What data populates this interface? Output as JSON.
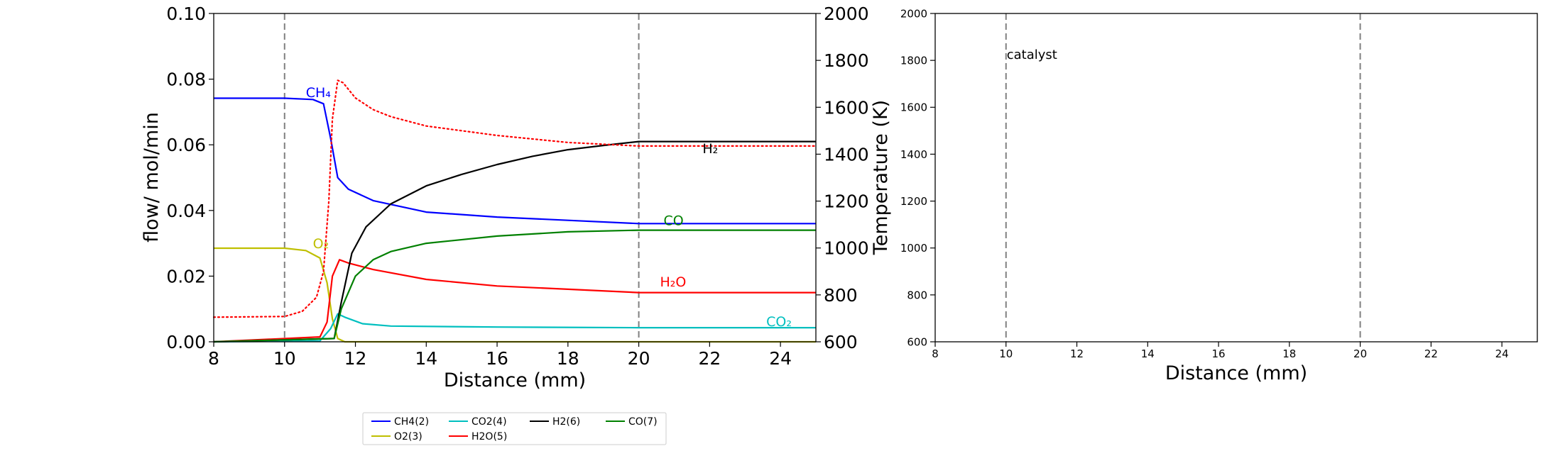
{
  "chart_data": [
    {
      "type": "line",
      "xlabel": "Distance (mm)",
      "ylabel": "flow/ mol/min",
      "ylabel_right": "Temperature (K)",
      "xlim": [
        8,
        25
      ],
      "ylim": [
        0,
        0.1
      ],
      "ylim_right": [
        600,
        2000
      ],
      "xticks": [
        "8",
        "10",
        "12",
        "14",
        "16",
        "18",
        "20",
        "22",
        "24"
      ],
      "yticks": [
        "0.00",
        "0.02",
        "0.04",
        "0.06",
        "0.08",
        "0.10"
      ],
      "yticks_right": [
        "600",
        "800",
        "1000",
        "1200",
        "1400",
        "1600",
        "1800",
        "2000"
      ],
      "vlines": [
        10,
        20
      ],
      "series": [
        {
          "name": "CH4(2)",
          "label": "CH₄",
          "color": "#0000ff",
          "style": "solid",
          "axis": "left",
          "x": [
            8,
            10,
            10.8,
            11.1,
            11.3,
            11.5,
            11.8,
            12.5,
            14,
            16,
            18,
            20,
            25
          ],
          "y": [
            0.0742,
            0.0742,
            0.0738,
            0.0725,
            0.062,
            0.05,
            0.0465,
            0.043,
            0.0395,
            0.038,
            0.037,
            0.036,
            0.036
          ]
        },
        {
          "name": "O2(3)",
          "label": "O₂",
          "color": "#bfbf00",
          "style": "solid",
          "axis": "left",
          "x": [
            8,
            10,
            10.6,
            11.0,
            11.2,
            11.35,
            11.5,
            11.7,
            25
          ],
          "y": [
            0.0285,
            0.0285,
            0.0278,
            0.0255,
            0.018,
            0.007,
            0.001,
            0,
            0
          ]
        },
        {
          "name": "CO2(4)",
          "label": "CO₂",
          "color": "#00bfbf",
          "style": "solid",
          "axis": "left",
          "x": [
            8,
            11,
            11.3,
            11.5,
            11.7,
            12.2,
            13,
            16,
            20,
            25
          ],
          "y": [
            0,
            0.0003,
            0.004,
            0.0085,
            0.0075,
            0.0055,
            0.0048,
            0.0045,
            0.0043,
            0.0043
          ]
        },
        {
          "name": "H2O(5)",
          "label": "H₂O",
          "color": "#ff0000",
          "style": "solid",
          "axis": "left",
          "x": [
            8,
            11,
            11.2,
            11.35,
            11.55,
            11.8,
            12.5,
            14,
            16,
            18,
            20,
            25
          ],
          "y": [
            0,
            0.0015,
            0.006,
            0.02,
            0.025,
            0.024,
            0.022,
            0.019,
            0.017,
            0.016,
            0.015,
            0.015
          ]
        },
        {
          "name": "H2(6)",
          "label": "H₂",
          "color": "#000000",
          "style": "solid",
          "axis": "left",
          "x": [
            8,
            11.4,
            11.6,
            11.9,
            12.3,
            13,
            14,
            15,
            16,
            17,
            18,
            19,
            20,
            25
          ],
          "y": [
            0,
            0.001,
            0.012,
            0.027,
            0.035,
            0.042,
            0.0475,
            0.051,
            0.054,
            0.0565,
            0.0585,
            0.0598,
            0.061,
            0.061
          ]
        },
        {
          "name": "CO(7)",
          "label": "CO",
          "color": "#008000",
          "style": "solid",
          "axis": "left",
          "x": [
            8,
            11.4,
            11.6,
            12,
            12.5,
            13,
            14,
            16,
            18,
            20,
            25
          ],
          "y": [
            0,
            0.001,
            0.01,
            0.02,
            0.025,
            0.0275,
            0.03,
            0.0322,
            0.0335,
            0.034,
            0.034
          ]
        },
        {
          "name": "Temperature",
          "color": "#ff0000",
          "style": "dotted",
          "axis": "right",
          "x": [
            8,
            10,
            10.5,
            10.9,
            11.1,
            11.25,
            11.35,
            11.5,
            11.65,
            12,
            12.5,
            13,
            14,
            16,
            18,
            20,
            25
          ],
          "y": [
            705,
            708,
            730,
            790,
            900,
            1200,
            1550,
            1715,
            1705,
            1640,
            1590,
            1560,
            1520,
            1480,
            1450,
            1435,
            1435
          ]
        }
      ],
      "labels": [
        {
          "text": "CH₄",
          "x": 10.6,
          "y": 0.0745,
          "color": "#0000ff"
        },
        {
          "text": "O₂",
          "x": 10.8,
          "y": 0.0285,
          "color": "#bfbf00"
        },
        {
          "text": "H₂",
          "x": 21.8,
          "y": 0.0575,
          "color": "#000000"
        },
        {
          "text": "CO",
          "x": 20.7,
          "y": 0.0355,
          "color": "#008000"
        },
        {
          "text": "H₂O",
          "x": 20.6,
          "y": 0.0168,
          "color": "#ff0000"
        },
        {
          "text": "CO₂",
          "x": 23.6,
          "y": 0.0048,
          "color": "#00bfbf"
        }
      ]
    },
    {
      "type": "line",
      "xlabel": "Distance (mm)",
      "xlim": [
        8,
        25
      ],
      "ylim": [
        600,
        2000
      ],
      "xticks": [
        "8",
        "10",
        "12",
        "14",
        "16",
        "18",
        "20",
        "22",
        "24"
      ],
      "yticks": [
        "600",
        "800",
        "1000",
        "1200",
        "1400",
        "1600",
        "1800",
        "2000"
      ],
      "vlines": [
        10,
        20
      ],
      "annotation": {
        "text": "catalyst",
        "x": 10,
        "y": 1800
      },
      "series": []
    }
  ],
  "legend": {
    "entries": [
      {
        "name": "CH4(2)",
        "color": "#0000ff"
      },
      {
        "name": "CO2(4)",
        "color": "#00bfbf"
      },
      {
        "name": "H2(6)",
        "color": "#000000"
      },
      {
        "name": "CO(7)",
        "color": "#008000"
      },
      {
        "name": "O2(3)",
        "color": "#bfbf00"
      },
      {
        "name": "H2O(5)",
        "color": "#ff0000"
      }
    ]
  }
}
